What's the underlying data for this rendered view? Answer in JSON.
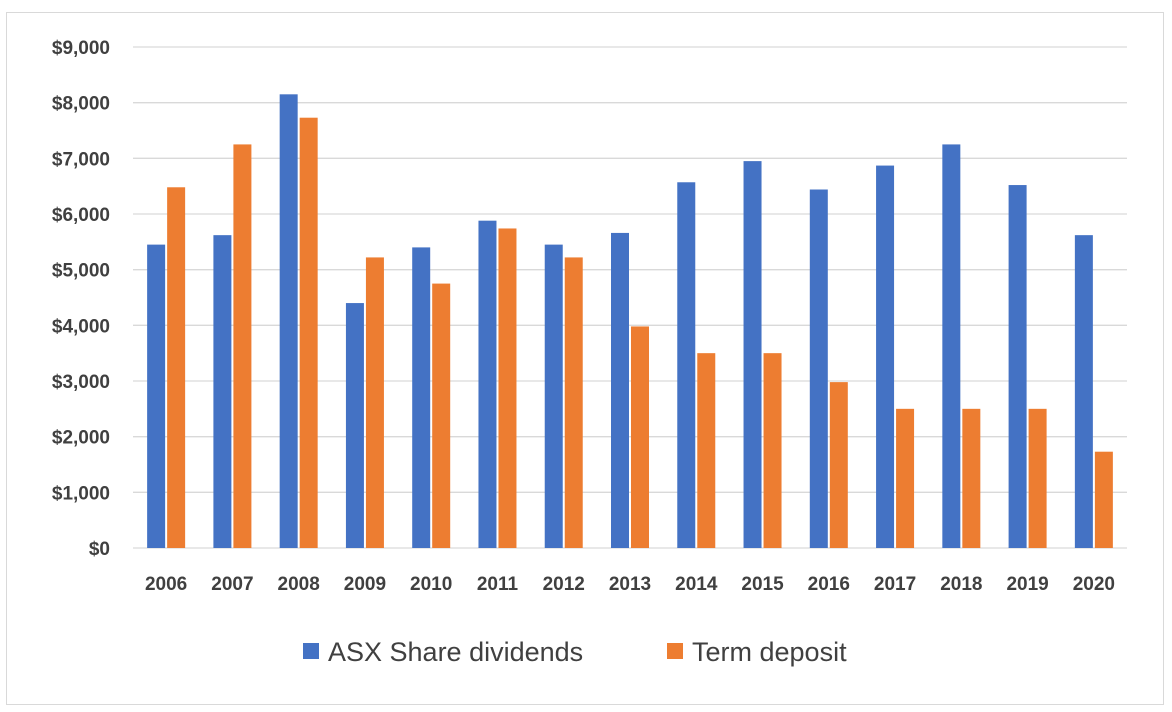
{
  "chart_data": {
    "type": "bar",
    "categories": [
      "2006",
      "2007",
      "2008",
      "2009",
      "2010",
      "2011",
      "2012",
      "2013",
      "2014",
      "2015",
      "2016",
      "2017",
      "2018",
      "2019",
      "2020"
    ],
    "series": [
      {
        "name": "ASX Share dividends",
        "color": "#4472c4",
        "values": [
          5450,
          5620,
          8150,
          4400,
          5400,
          5880,
          5450,
          5660,
          6570,
          6950,
          6440,
          6870,
          7250,
          6520,
          5620
        ]
      },
      {
        "name": "Term deposit",
        "color": "#ed7d31",
        "values": [
          6480,
          7250,
          7730,
          5220,
          4750,
          5740,
          5220,
          3980,
          3500,
          3500,
          2980,
          2500,
          2500,
          2500,
          1730
        ]
      }
    ],
    "yticks": [
      "$0",
      "$1,000",
      "$2,000",
      "$3,000",
      "$4,000",
      "$5,000",
      "$6,000",
      "$7,000",
      "$8,000",
      "$9,000"
    ],
    "ylim": [
      0,
      9000
    ],
    "grid": true,
    "legend_position": "bottom",
    "gridline_color": "#d9d9d9"
  }
}
